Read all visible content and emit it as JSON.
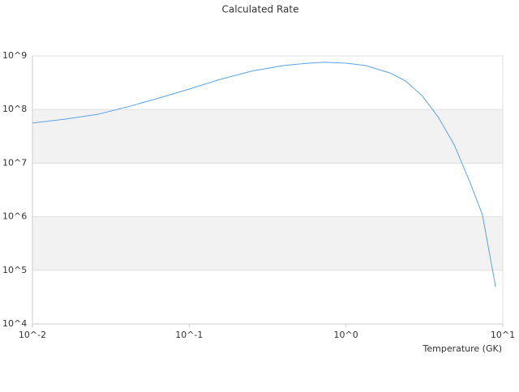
{
  "chart_data": {
    "type": "line",
    "title": "Calculated Rate",
    "x_label": "Temperature (GK)",
    "x": [
      0.01,
      0.0161,
      0.0259,
      0.0418,
      0.0673,
      0.1,
      0.155,
      0.251,
      0.401,
      0.575,
      0.728,
      1.0,
      1.33,
      1.91,
      2.4,
      3.06,
      3.89,
      4.9,
      6.17,
      7.41,
      9.0
    ],
    "series": [
      {
        "name": "Calculated Rate",
        "color": "#5ba3e6",
        "values": [
          56000000,
          66000000,
          81000000,
          115000000,
          170000000,
          240000000,
          360000000,
          520000000,
          660000000,
          730000000,
          760000000,
          730000000,
          660000000,
          480000000,
          340000000,
          180000000,
          71000000,
          22000000,
          4400000,
          1100000,
          49000
        ]
      }
    ],
    "xlog": true,
    "ylog": true,
    "xlim": [
      0.01,
      10
    ],
    "ylim": [
      10000,
      1000000000
    ],
    "xticks": [
      {
        "value": 0.01,
        "label": "10^-2"
      },
      {
        "value": 0.1,
        "label": "10^-1"
      },
      {
        "value": 1,
        "label": "10^0"
      },
      {
        "value": 10,
        "label": "10^1"
      }
    ],
    "yticks": [
      {
        "value": 10000,
        "label": "10^4"
      },
      {
        "value": 100000,
        "label": "10^5"
      },
      {
        "value": 1000000,
        "label": "10^6"
      },
      {
        "value": 10000000,
        "label": "10^7"
      },
      {
        "value": 100000000,
        "label": "10^8"
      },
      {
        "value": 1000000000,
        "label": "10^9"
      }
    ],
    "grid": true,
    "band_color": "#f2f2f2"
  }
}
